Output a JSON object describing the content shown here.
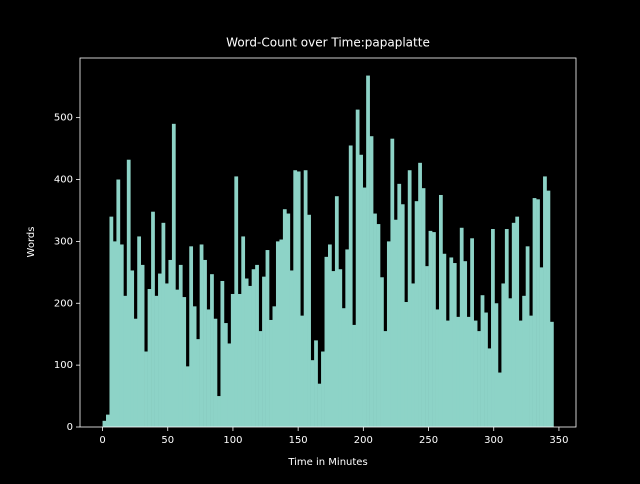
{
  "chart_data": {
    "type": "histogram",
    "title": "Word-Count over Time:papaplatte",
    "x_label": "Time in Minutes",
    "y_label": "Words",
    "color": "#8dd3c7",
    "bins": [
      0,
      2.66,
      5.32,
      7.98,
      10.64,
      13.3,
      15.96,
      18.62,
      21.28,
      23.94,
      26.6,
      29.26,
      31.92,
      34.58,
      37.24,
      39.9,
      42.56,
      45.22,
      47.88,
      50.54,
      53.2,
      55.86,
      58.52,
      61.18,
      63.84,
      66.5,
      69.16,
      71.82,
      74.48,
      77.14,
      79.8,
      82.46,
      85.12,
      87.78,
      90.44,
      93.1,
      95.76,
      98.42,
      101.08,
      103.74,
      106.4,
      109.06,
      111.72,
      114.38,
      117.04,
      119.7,
      122.36,
      125.02,
      127.68,
      130.34,
      133,
      135.66,
      138.32,
      140.98,
      143.64,
      146.3,
      148.96,
      151.62,
      154.28,
      156.94,
      159.6,
      162.26,
      164.92,
      167.58,
      170.24,
      172.9,
      175.56,
      178.22,
      180.88,
      183.54,
      186.2,
      188.86,
      191.52,
      194.18,
      196.84,
      199.5,
      202.16,
      204.82,
      207.48,
      210.14,
      212.8,
      215.46,
      218.12,
      220.78,
      223.44,
      226.1,
      228.76,
      231.42,
      234.08,
      236.74,
      239.4,
      242.06,
      244.72,
      247.38,
      250.04,
      252.7,
      255.36,
      258.02,
      260.68,
      263.34,
      266,
      268.66,
      271.32,
      273.98,
      276.64,
      279.3,
      281.96,
      284.62,
      287.28,
      289.94,
      292.6,
      295.26,
      297.92,
      300.58,
      303.24,
      305.9,
      308.56,
      311.22,
      313.88,
      316.54,
      319.2,
      321.86,
      324.52,
      327.18,
      329.84,
      332.5,
      335.16,
      337.82,
      340.48,
      343.14,
      345.8
    ],
    "values": [
      10,
      20,
      340,
      300,
      400,
      295,
      212,
      432,
      253,
      175,
      308,
      262,
      122,
      223,
      348,
      212,
      248,
      330,
      232,
      270,
      490,
      222,
      262,
      210,
      98,
      292,
      195,
      142,
      295,
      270,
      190,
      247,
      175,
      50,
      236,
      168,
      135,
      215,
      405,
      215,
      308,
      240,
      228,
      255,
      262,
      155,
      243,
      286,
      173,
      195,
      300,
      303,
      352,
      345,
      253,
      415,
      413,
      180,
      415,
      343,
      108,
      140,
      70,
      122,
      275,
      295,
      252,
      373,
      255,
      192,
      287,
      455,
      165,
      513,
      440,
      387,
      568,
      470,
      345,
      328,
      242,
      155,
      300,
      466,
      335,
      393,
      360,
      202,
      415,
      232,
      365,
      427,
      386,
      260,
      317,
      315,
      190,
      375,
      280,
      172,
      274,
      265,
      178,
      322,
      268,
      178,
      305,
      172,
      155,
      213,
      185,
      127,
      320,
      200,
      88,
      232,
      320,
      208,
      330,
      340,
      172,
      212,
      292,
      180,
      370,
      368,
      258,
      405,
      382,
      170
    ],
    "xlim": [
      -17.29,
      363.09
    ],
    "ylim": [
      0,
      596.4
    ],
    "xticks": [
      0,
      50,
      100,
      150,
      200,
      250,
      300,
      350
    ],
    "yticks": [
      0,
      100,
      200,
      300,
      400,
      500
    ]
  }
}
